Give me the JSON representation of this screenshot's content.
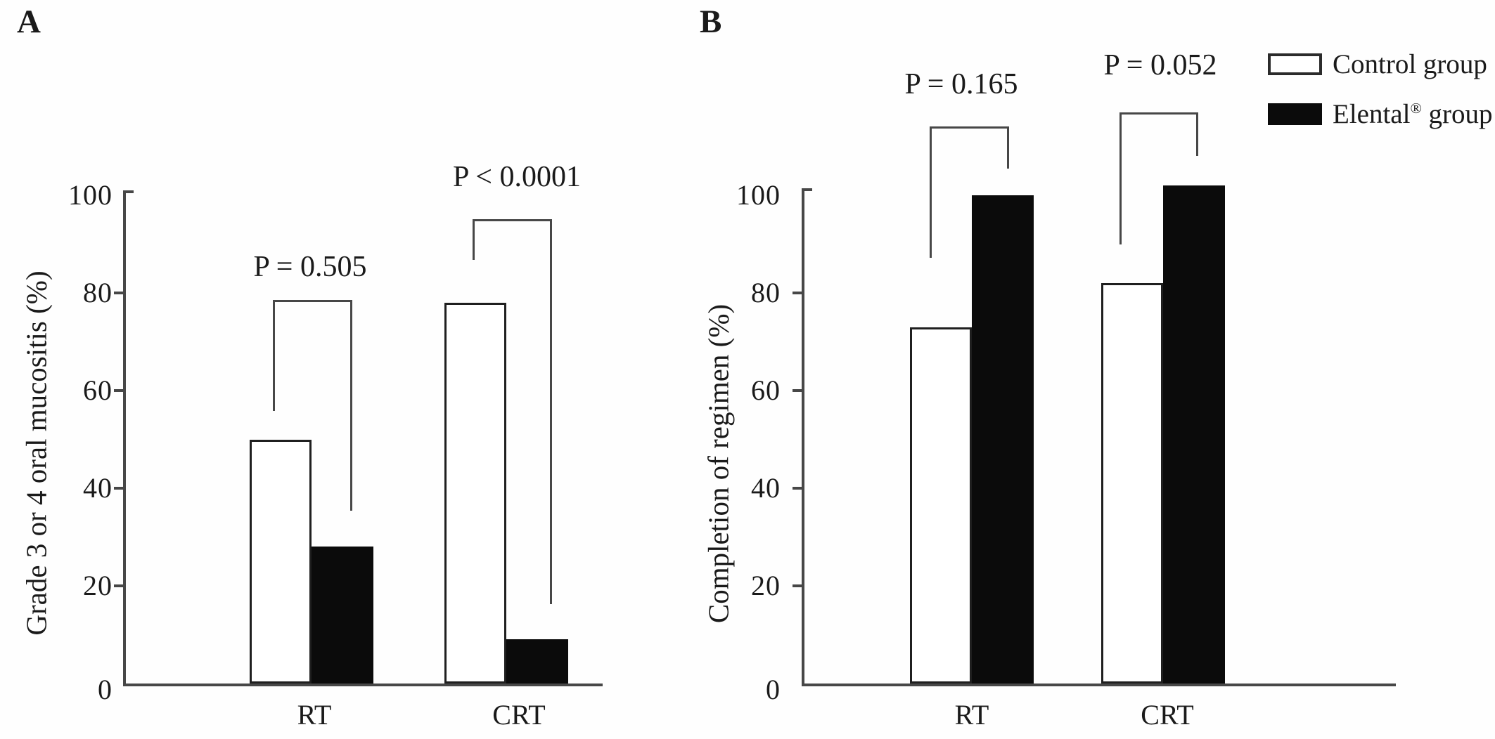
{
  "colors": {
    "control_fill": "#ffffff",
    "elental_fill": "#0b0b0b",
    "axis_line": "#474747",
    "text": "#1a1a1a"
  },
  "legend": {
    "position": "top-right",
    "entries": [
      {
        "label": "Control group",
        "fill": "#ffffff",
        "style": "open"
      },
      {
        "label": "Elental® group",
        "fill": "#0b0b0b",
        "style": "filled"
      }
    ]
  },
  "chart_data": [
    {
      "id": "A",
      "panel_label": "A",
      "type": "bar",
      "title": "",
      "categories": [
        "RT",
        "CRT"
      ],
      "series": [
        {
          "name": "Control group",
          "values": [
            50,
            78
          ],
          "fill": "#ffffff"
        },
        {
          "name": "Elental® group",
          "values": [
            28,
            9
          ],
          "fill": "#0b0b0b"
        }
      ],
      "xlabel": "",
      "ylabel": "Grade 3 or 4 oral mucositis (%)",
      "yticks": [
        0,
        20,
        40,
        60,
        80,
        100
      ],
      "ylim": [
        0,
        101
      ],
      "grid": false,
      "legend_position": "none",
      "annotations": [
        {
          "text": "P = 0.505",
          "category": "RT",
          "between": [
            "Control group",
            "Elental® group"
          ]
        },
        {
          "text": "P < 0.0001",
          "category": "CRT",
          "between": [
            "Control group",
            "Elental® group"
          ]
        }
      ]
    },
    {
      "id": "B",
      "panel_label": "B",
      "type": "bar",
      "title": "",
      "categories": [
        "RT",
        "CRT"
      ],
      "series": [
        {
          "name": "Control group",
          "values": [
            73,
            82
          ],
          "fill": "#ffffff"
        },
        {
          "name": "Elental® group",
          "values": [
            100,
            102
          ],
          "fill": "#0b0b0b"
        }
      ],
      "xlabel": "",
      "ylabel": "Completion of regimen (%)",
      "yticks": [
        0,
        20,
        40,
        60,
        80,
        100
      ],
      "ylim": [
        0,
        101
      ],
      "grid": false,
      "legend_position": "figure-top-right",
      "annotations": [
        {
          "text": "P = 0.165",
          "category": "RT",
          "between": [
            "Control group",
            "Elental® group"
          ]
        },
        {
          "text": "P = 0.052",
          "category": "CRT",
          "between": [
            "Control group",
            "Elental® group"
          ]
        }
      ]
    }
  ]
}
